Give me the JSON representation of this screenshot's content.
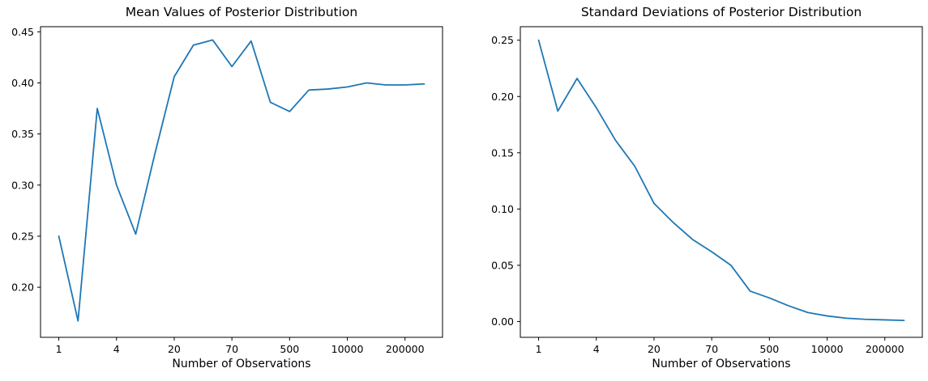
{
  "figure": {
    "background_color": "#ffffff",
    "text_color": "#000000",
    "accent_line_color": "#1f77b4"
  },
  "chart_data": [
    {
      "type": "line",
      "title": "Mean Values of Posterior Distribution",
      "xlabel": "Number of Observations",
      "ylabel": "",
      "line_color": "#1f77b4",
      "grid": false,
      "legend": "none",
      "x_index": [
        0,
        1,
        2,
        3,
        4,
        5,
        6,
        7,
        8,
        9,
        10,
        11,
        12,
        13,
        14,
        15,
        16,
        17,
        18,
        19
      ],
      "values": [
        0.25,
        0.167,
        0.375,
        0.3,
        0.252,
        0.331,
        0.406,
        0.437,
        0.442,
        0.416,
        0.441,
        0.381,
        0.372,
        0.393,
        0.394,
        0.396,
        0.4,
        0.398,
        0.398,
        0.399
      ],
      "x_tick_positions": [
        0,
        3,
        6,
        9,
        12,
        15,
        18
      ],
      "x_tick_labels": [
        "1",
        "4",
        "20",
        "70",
        "500",
        "10000",
        "200000"
      ],
      "y_tick_values": [
        0.2,
        0.25,
        0.3,
        0.35,
        0.4,
        0.45
      ],
      "y_tick_labels": [
        "0.20",
        "0.25",
        "0.30",
        "0.35",
        "0.40",
        "0.45"
      ],
      "xlim": [
        -0.95,
        19.95
      ],
      "ylim": [
        0.151,
        0.455
      ]
    },
    {
      "type": "line",
      "title": "Standard Deviations of Posterior Distribution",
      "xlabel": "Number of Observations",
      "ylabel": "",
      "line_color": "#1f77b4",
      "grid": false,
      "legend": "none",
      "x_index": [
        0,
        1,
        2,
        3,
        4,
        5,
        6,
        7,
        8,
        9,
        10,
        11,
        12,
        13,
        14,
        15,
        16,
        17,
        18,
        19
      ],
      "values": [
        0.25,
        0.187,
        0.216,
        0.19,
        0.161,
        0.138,
        0.105,
        0.088,
        0.073,
        0.062,
        0.05,
        0.027,
        0.021,
        0.014,
        0.008,
        0.005,
        0.003,
        0.002,
        0.0015,
        0.001
      ],
      "x_tick_positions": [
        0,
        3,
        6,
        9,
        12,
        15,
        18
      ],
      "x_tick_labels": [
        "1",
        "4",
        "20",
        "70",
        "500",
        "10000",
        "200000"
      ],
      "y_tick_values": [
        0.0,
        0.05,
        0.1,
        0.15,
        0.2,
        0.25
      ],
      "y_tick_labels": [
        "0.00",
        "0.05",
        "0.10",
        "0.15",
        "0.20",
        "0.25"
      ],
      "xlim": [
        -0.95,
        19.95
      ],
      "ylim": [
        -0.014,
        0.262
      ]
    }
  ]
}
